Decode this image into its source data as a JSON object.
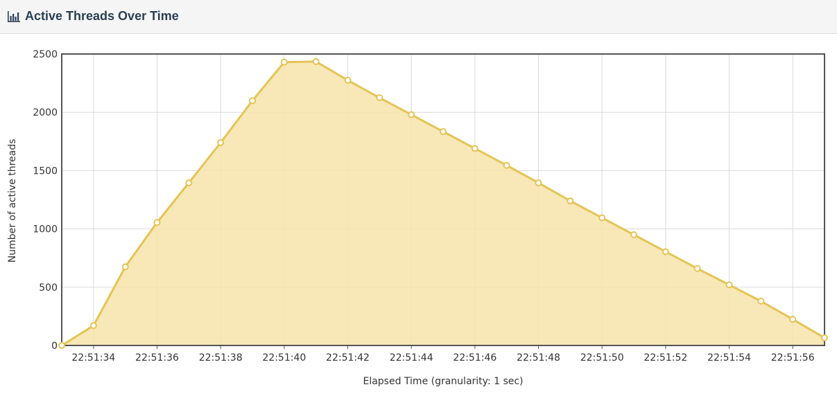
{
  "panel": {
    "title": "Active Threads Over Time",
    "icon": "bar-chart-icon"
  },
  "colors": {
    "series_line": "#e5c454",
    "series_fill": "#f7e3aa",
    "axis": "#545454",
    "grid": "#dadada",
    "header_bg": "#f5f5f5",
    "title": "#2a3f54"
  },
  "chart_data": {
    "type": "area",
    "title": "",
    "xlabel": "Elapsed Time (granularity: 1 sec)",
    "ylabel": "Number of active threads",
    "ylim": [
      0,
      2500
    ],
    "yticks": [
      "0",
      "500",
      "1000",
      "1500",
      "2000",
      "2500"
    ],
    "xlim": [
      "22:51:33",
      "22:51:57"
    ],
    "xticks": [
      "22:51:34",
      "22:51:36",
      "22:51:38",
      "22:51:40",
      "22:51:42",
      "22:51:44",
      "22:51:46",
      "22:51:48",
      "22:51:50",
      "22:51:52",
      "22:51:54",
      "22:51:56"
    ],
    "grid": true,
    "series": [
      {
        "x": [
          "22:51:33",
          "22:51:34",
          "22:51:35",
          "22:51:36",
          "22:51:37",
          "22:51:38",
          "22:51:39",
          "22:51:40",
          "22:51:41",
          "22:51:42",
          "22:51:43",
          "22:51:44",
          "22:51:45",
          "22:51:46",
          "22:51:47",
          "22:51:48",
          "22:51:49",
          "22:51:50",
          "22:51:51",
          "22:51:52",
          "22:51:53",
          "22:51:54",
          "22:51:55",
          "22:51:56",
          "22:51:57"
        ],
        "values": [
          0,
          170,
          675,
          1055,
          1395,
          1740,
          2100,
          2430,
          2435,
          2275,
          2125,
          1980,
          1835,
          1690,
          1545,
          1395,
          1240,
          1095,
          950,
          805,
          660,
          520,
          380,
          225,
          65
        ]
      }
    ]
  }
}
